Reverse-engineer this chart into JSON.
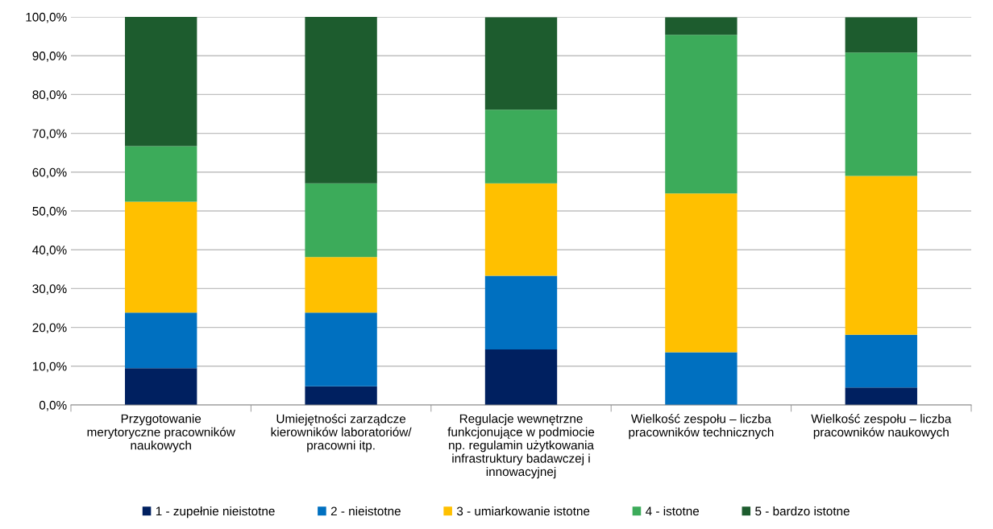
{
  "chart_data": {
    "type": "bar",
    "stacked": true,
    "categories": [
      "Przygotowanie\nmerytoryczne pracowników\nnaukowych",
      "Umiejętności zarządcze\nkierowników laboratoriów/\npracowni itp.",
      "Regulacje wewnętrzne\nfunkcjonujące w podmiocie\nnp. regulamin użytkowania\ninfrastruktury badawczej i\ninnowacyjnej",
      "Wielkość zespołu – liczba\npracowników technicznych",
      "Wielkość zespołu – liczba\npracowników naukowych"
    ],
    "series": [
      {
        "name": "1 - zupełnie nieistotne",
        "color": "#002060",
        "values": [
          9.5,
          4.8,
          14.3,
          0,
          4.5
        ]
      },
      {
        "name": "2 - nieistotne",
        "color": "#0070c0",
        "values": [
          14.3,
          19.0,
          19.0,
          13.6,
          13.6
        ]
      },
      {
        "name": "3 - umiarkowanie istotne",
        "color": "#ffc000",
        "values": [
          28.6,
          14.3,
          23.8,
          40.9,
          40.9
        ]
      },
      {
        "name": "4 - istotne",
        "color": "#3cab5a",
        "values": [
          14.3,
          19.0,
          19.0,
          40.9,
          31.8
        ]
      },
      {
        "name": "5 - bardzo istotne",
        "color": "#1d5c2e",
        "values": [
          33.3,
          42.9,
          23.8,
          4.5,
          9.1
        ]
      }
    ],
    "ylim": [
      0,
      100
    ],
    "yticks": [
      {
        "value": 0,
        "label": "0,0%"
      },
      {
        "value": 10,
        "label": "10,0%"
      },
      {
        "value": 20,
        "label": "20,0%"
      },
      {
        "value": 30,
        "label": "30,0%"
      },
      {
        "value": 40,
        "label": "40,0%"
      },
      {
        "value": 50,
        "label": "50,0%"
      },
      {
        "value": 60,
        "label": "60,0%"
      },
      {
        "value": 70,
        "label": "70,0%"
      },
      {
        "value": 80,
        "label": "80,0%"
      },
      {
        "value": 90,
        "label": "90,0%"
      },
      {
        "value": 100,
        "label": "100,0%"
      }
    ],
    "grid": "y",
    "legend": "bottom"
  }
}
